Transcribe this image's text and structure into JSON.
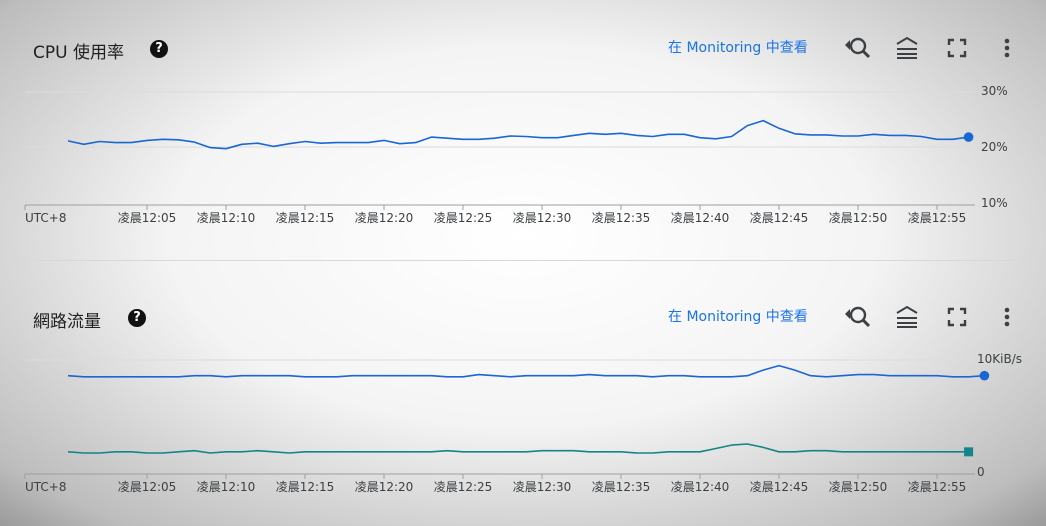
{
  "cpu_panel": {
    "title": "CPU 使用率",
    "link": "在 Monitoring 中查看",
    "icons": [
      "help-icon",
      "zoom-reset-icon",
      "legend-icon",
      "fullscreen-icon",
      "more-vert-icon"
    ]
  },
  "net_panel": {
    "title": "網路流量",
    "link": "在 Monitoring 中查看",
    "icons": [
      "help-icon",
      "zoom-reset-icon",
      "legend-icon",
      "fullscreen-icon",
      "more-vert-icon"
    ]
  },
  "colors": {
    "series_blue": "#1967d2",
    "series_teal": "#12858a",
    "link": "#1a73e8"
  },
  "chart_data": [
    {
      "type": "line",
      "timezone_label": "UTC+8",
      "x_ticks": [
        "凌晨12:05",
        "凌晨12:10",
        "凌晨12:15",
        "凌晨12:20",
        "凌晨12:25",
        "凌晨12:30",
        "凌晨12:35",
        "凌晨12:40",
        "凌晨12:45",
        "凌晨12:50",
        "凌晨12:55"
      ],
      "x_range": [
        "12:00",
        "12:57"
      ],
      "y_ticks": [
        "10%",
        "20%",
        "30%"
      ],
      "ylim": [
        10,
        30
      ],
      "y_unit": "%",
      "grid": true,
      "series": [
        {
          "color": "#1967d2",
          "marker": "circle",
          "x": [
            0,
            1,
            2,
            3,
            4,
            5,
            6,
            7,
            8,
            9,
            10,
            11,
            12,
            13,
            14,
            15,
            16,
            17,
            18,
            19,
            20,
            21,
            22,
            23,
            24,
            25,
            26,
            27,
            28,
            29,
            30,
            31,
            32,
            33,
            34,
            35,
            36,
            37,
            38,
            39,
            40,
            41,
            42,
            43,
            44,
            45,
            46,
            47,
            48,
            49,
            50,
            51,
            52,
            53,
            54,
            55,
            56,
            57
          ],
          "values": [
            21.1,
            20.5,
            21.0,
            20.8,
            20.8,
            21.2,
            21.4,
            21.3,
            20.9,
            19.9,
            19.7,
            20.5,
            20.7,
            20.1,
            20.6,
            21.0,
            20.7,
            20.8,
            20.8,
            20.8,
            21.2,
            20.6,
            20.8,
            21.8,
            21.6,
            21.4,
            21.4,
            21.6,
            22.0,
            21.9,
            21.7,
            21.7,
            22.1,
            22.5,
            22.3,
            22.5,
            22.1,
            21.9,
            22.3,
            22.3,
            21.7,
            21.5,
            21.9,
            23.9,
            24.8,
            23.4,
            22.4,
            22.2,
            22.2,
            22.0,
            22.0,
            22.3,
            22.1,
            22.1,
            21.9,
            21.4,
            21.4,
            21.8
          ]
        }
      ]
    },
    {
      "type": "line",
      "timezone_label": "UTC+8",
      "x_ticks": [
        "凌晨12:05",
        "凌晨12:10",
        "凌晨12:15",
        "凌晨12:20",
        "凌晨12:25",
        "凌晨12:30",
        "凌晨12:35",
        "凌晨12:40",
        "凌晨12:45",
        "凌晨12:50",
        "凌晨12:55"
      ],
      "x_range": [
        "12:00",
        "12:57"
      ],
      "y_ticks": [
        "0",
        "10KiB/s"
      ],
      "ylim": [
        0,
        10
      ],
      "y_unit": "KiB/s",
      "grid": true,
      "series": [
        {
          "color": "#1967d2",
          "marker": "circle",
          "x": [
            0,
            1,
            2,
            3,
            4,
            5,
            6,
            7,
            8,
            9,
            10,
            11,
            12,
            13,
            14,
            15,
            16,
            17,
            18,
            19,
            20,
            21,
            22,
            23,
            24,
            25,
            26,
            27,
            28,
            29,
            30,
            31,
            32,
            33,
            34,
            35,
            36,
            37,
            38,
            39,
            40,
            41,
            42,
            43,
            44,
            45,
            46,
            47,
            48,
            49,
            50,
            51,
            52,
            53,
            54,
            55,
            56,
            57,
            58
          ],
          "values": [
            8.6,
            8.5,
            8.5,
            8.5,
            8.5,
            8.5,
            8.5,
            8.5,
            8.6,
            8.6,
            8.5,
            8.6,
            8.6,
            8.6,
            8.6,
            8.5,
            8.5,
            8.5,
            8.6,
            8.6,
            8.6,
            8.6,
            8.6,
            8.6,
            8.5,
            8.5,
            8.7,
            8.6,
            8.5,
            8.6,
            8.6,
            8.6,
            8.6,
            8.7,
            8.6,
            8.6,
            8.6,
            8.5,
            8.6,
            8.6,
            8.5,
            8.5,
            8.5,
            8.6,
            9.1,
            9.5,
            9.1,
            8.6,
            8.5,
            8.6,
            8.7,
            8.7,
            8.6,
            8.6,
            8.6,
            8.6,
            8.5,
            8.5,
            8.6
          ]
        },
        {
          "color": "#12858a",
          "marker": "square",
          "x": [
            0,
            1,
            2,
            3,
            4,
            5,
            6,
            7,
            8,
            9,
            10,
            11,
            12,
            13,
            14,
            15,
            16,
            17,
            18,
            19,
            20,
            21,
            22,
            23,
            24,
            25,
            26,
            27,
            28,
            29,
            30,
            31,
            32,
            33,
            34,
            35,
            36,
            37,
            38,
            39,
            40,
            41,
            42,
            43,
            44,
            45,
            46,
            47,
            48,
            49,
            50,
            51,
            52,
            53,
            54,
            55,
            56,
            57
          ],
          "values": [
            1.8,
            1.7,
            1.7,
            1.8,
            1.8,
            1.7,
            1.7,
            1.8,
            1.9,
            1.7,
            1.8,
            1.8,
            1.9,
            1.8,
            1.7,
            1.8,
            1.8,
            1.8,
            1.8,
            1.8,
            1.8,
            1.8,
            1.8,
            1.8,
            1.9,
            1.8,
            1.8,
            1.8,
            1.8,
            1.8,
            1.9,
            1.9,
            1.9,
            1.8,
            1.8,
            1.8,
            1.7,
            1.7,
            1.8,
            1.8,
            1.8,
            2.1,
            2.4,
            2.5,
            2.2,
            1.8,
            1.8,
            1.9,
            1.9,
            1.8,
            1.8,
            1.8,
            1.8,
            1.8,
            1.8,
            1.8,
            1.8,
            1.8
          ]
        }
      ]
    }
  ]
}
